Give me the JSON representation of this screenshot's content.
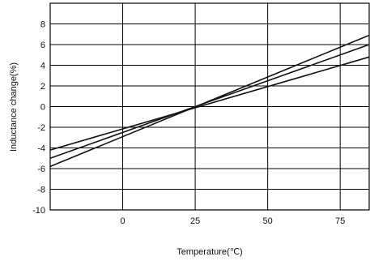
{
  "chart_data": {
    "type": "line",
    "xlabel": "Temperature(℃)",
    "ylabel": "Inductance change(%)",
    "xlim": [
      -25,
      85
    ],
    "ylim": [
      -10,
      10
    ],
    "x_ticks": [
      0,
      25,
      50,
      75
    ],
    "y_ticks": [
      8,
      6,
      4,
      2,
      0,
      -2,
      -4,
      -6,
      -8,
      -10
    ],
    "grid": true,
    "series": [
      {
        "x": [
          -25,
          85
        ],
        "y": [
          -5.8,
          6.9
        ]
      },
      {
        "x": [
          -25,
          85
        ],
        "y": [
          -5.0,
          6.0
        ]
      },
      {
        "x": [
          -25,
          85
        ],
        "y": [
          -4.2,
          4.8
        ]
      }
    ]
  }
}
